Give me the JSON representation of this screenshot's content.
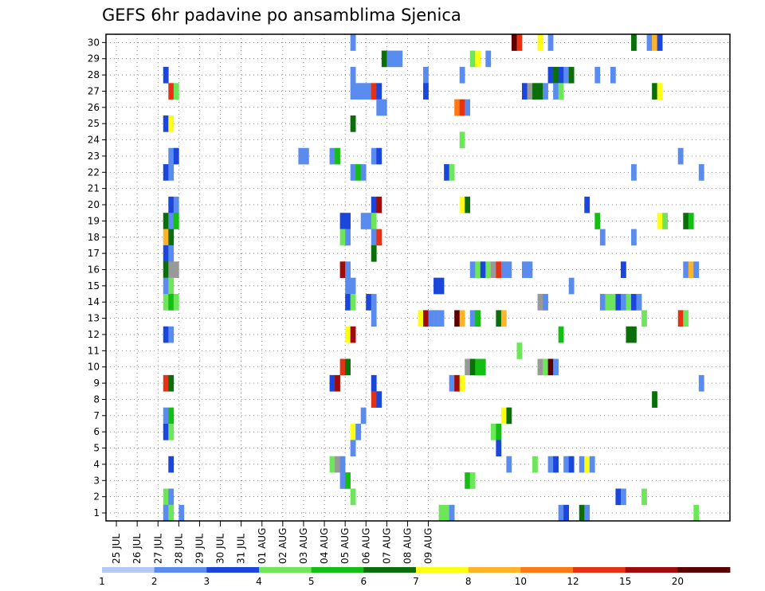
{
  "chart_data": {
    "type": "heatmap",
    "title": "GEFS 6hr padavine po ansamblima Sjenica",
    "y_tick_labels": [
      "1",
      "2",
      "3",
      "4",
      "5",
      "6",
      "7",
      "8",
      "9",
      "10",
      "11",
      "12",
      "13",
      "14",
      "15",
      "16",
      "17",
      "18",
      "19",
      "20",
      "21",
      "22",
      "23",
      "24",
      "25",
      "26",
      "27",
      "28",
      "29",
      "30"
    ],
    "x_tick_labels": [
      "25 JUL",
      "26 JUL",
      "27 JUL",
      "28 JUL",
      "29 JUL",
      "30 JUL",
      "31 JUL",
      "01 AUG",
      "02 AUG",
      "03 AUG",
      "04 AUG",
      "05 AUG",
      "06 AUG",
      "07 AUG",
      "08 AUG",
      "09 AUG"
    ],
    "grid": "dotted",
    "legend": {
      "placement": "bottom",
      "labels": [
        "1",
        "2",
        "3",
        "4",
        "5",
        "6",
        "7",
        "8",
        "10",
        "12",
        "15",
        "20"
      ],
      "colors": [
        "#b4c8f5",
        "#5a8cf0",
        "#1a46dc",
        "#6ee65a",
        "#14be14",
        "#0a6e0a",
        "#ffff14",
        "#ffb428",
        "#ff7814",
        "#e63214",
        "#a00a0a",
        "#5a0000"
      ]
    },
    "cells": [
      {
        "m": 30,
        "c": [
          [
            47,
            1
          ],
          [
            78,
            11
          ],
          [
            79,
            9
          ],
          [
            83,
            6
          ],
          [
            85,
            1
          ],
          [
            101,
            5
          ],
          [
            104,
            1
          ],
          [
            105,
            7
          ],
          [
            106,
            2
          ]
        ]
      },
      {
        "m": 29,
        "c": [
          [
            53,
            5
          ],
          [
            54,
            1
          ],
          [
            55,
            1
          ],
          [
            56,
            1
          ],
          [
            70,
            3
          ],
          [
            71,
            6
          ],
          [
            73,
            1
          ]
        ]
      },
      {
        "m": 28,
        "c": [
          [
            11,
            2
          ],
          [
            47,
            1
          ],
          [
            61,
            1
          ],
          [
            68,
            1
          ],
          [
            85,
            2
          ],
          [
            86,
            5
          ],
          [
            87,
            2
          ],
          [
            88,
            1
          ],
          [
            89,
            5
          ],
          [
            94,
            1
          ],
          [
            97,
            1
          ]
        ]
      },
      {
        "m": 27,
        "c": [
          [
            12,
            9
          ],
          [
            13,
            3
          ],
          [
            47,
            1
          ],
          [
            48,
            1
          ],
          [
            49,
            1
          ],
          [
            50,
            1
          ],
          [
            51,
            9
          ],
          [
            52,
            2
          ],
          [
            61,
            2
          ],
          [
            80,
            2
          ],
          [
            81,
            12
          ],
          [
            82,
            5
          ],
          [
            83,
            5
          ],
          [
            84,
            1
          ],
          [
            86,
            1
          ],
          [
            87,
            3
          ],
          [
            105,
            5
          ],
          [
            106,
            6
          ]
        ]
      },
      {
        "m": 26,
        "c": [
          [
            52,
            1
          ],
          [
            53,
            1
          ],
          [
            67,
            8
          ],
          [
            68,
            9
          ],
          [
            69,
            1
          ]
        ]
      },
      {
        "m": 25,
        "c": [
          [
            11,
            2
          ],
          [
            12,
            6
          ],
          [
            47,
            5
          ]
        ]
      },
      {
        "m": 24,
        "c": [
          [
            68,
            3
          ]
        ]
      },
      {
        "m": 23,
        "c": [
          [
            12,
            1
          ],
          [
            13,
            2
          ],
          [
            37,
            1
          ],
          [
            38,
            1
          ],
          [
            43,
            1
          ],
          [
            44,
            4
          ],
          [
            51,
            1
          ],
          [
            52,
            2
          ],
          [
            110,
            1
          ]
        ]
      },
      {
        "m": 22,
        "c": [
          [
            11,
            2
          ],
          [
            12,
            1
          ],
          [
            47,
            1
          ],
          [
            48,
            4
          ],
          [
            49,
            1
          ],
          [
            65,
            2
          ],
          [
            66,
            3
          ],
          [
            101,
            1
          ],
          [
            114,
            1
          ]
        ]
      },
      {
        "m": 20,
        "c": [
          [
            12,
            2
          ],
          [
            13,
            1
          ],
          [
            51,
            2
          ],
          [
            52,
            10
          ],
          [
            68,
            6
          ],
          [
            69,
            5
          ],
          [
            92,
            2
          ]
        ]
      },
      {
        "m": 19,
        "c": [
          [
            11,
            5
          ],
          [
            12,
            1
          ],
          [
            13,
            4
          ],
          [
            45,
            2
          ],
          [
            46,
            2
          ],
          [
            49,
            1
          ],
          [
            50,
            1
          ],
          [
            51,
            3
          ],
          [
            94,
            4
          ],
          [
            106,
            6
          ],
          [
            107,
            3
          ],
          [
            111,
            5
          ],
          [
            112,
            4
          ]
        ]
      },
      {
        "m": 18,
        "c": [
          [
            11,
            7
          ],
          [
            12,
            5
          ],
          [
            45,
            3
          ],
          [
            46,
            1
          ],
          [
            51,
            1
          ],
          [
            52,
            9
          ],
          [
            95,
            1
          ],
          [
            101,
            1
          ]
        ]
      },
      {
        "m": 17,
        "c": [
          [
            11,
            2
          ],
          [
            12,
            1
          ],
          [
            51,
            5
          ]
        ]
      },
      {
        "m": 16,
        "c": [
          [
            11,
            5
          ],
          [
            12,
            12
          ],
          [
            13,
            13
          ],
          [
            45,
            10
          ],
          [
            46,
            1
          ],
          [
            70,
            1
          ],
          [
            71,
            3
          ],
          [
            72,
            2
          ],
          [
            73,
            3
          ],
          [
            74,
            13
          ],
          [
            75,
            9
          ],
          [
            76,
            1
          ],
          [
            77,
            1
          ],
          [
            80,
            1
          ],
          [
            81,
            1
          ],
          [
            99,
            2
          ],
          [
            111,
            1
          ],
          [
            112,
            7
          ],
          [
            113,
            1
          ]
        ]
      },
      {
        "m": 15,
        "c": [
          [
            11,
            1
          ],
          [
            12,
            3
          ],
          [
            46,
            1
          ],
          [
            47,
            1
          ],
          [
            63,
            2
          ],
          [
            64,
            2
          ],
          [
            89,
            1
          ]
        ]
      },
      {
        "m": 14,
        "c": [
          [
            11,
            3
          ],
          [
            12,
            4
          ],
          [
            13,
            3
          ],
          [
            46,
            2
          ],
          [
            47,
            3
          ],
          [
            50,
            2
          ],
          [
            51,
            1
          ],
          [
            83,
            13
          ],
          [
            84,
            1
          ],
          [
            95,
            1
          ],
          [
            96,
            3
          ],
          [
            97,
            3
          ],
          [
            98,
            2
          ],
          [
            99,
            1
          ],
          [
            100,
            3
          ],
          [
            101,
            2
          ],
          [
            102,
            1
          ]
        ]
      },
      {
        "m": 13,
        "c": [
          [
            51,
            1
          ],
          [
            60,
            6
          ],
          [
            61,
            10
          ],
          [
            62,
            1
          ],
          [
            63,
            1
          ],
          [
            64,
            1
          ],
          [
            67,
            11
          ],
          [
            68,
            7
          ],
          [
            70,
            1
          ],
          [
            71,
            4
          ],
          [
            75,
            5
          ],
          [
            76,
            7
          ],
          [
            103,
            3
          ],
          [
            110,
            9
          ],
          [
            111,
            3
          ]
        ]
      },
      {
        "m": 12,
        "c": [
          [
            11,
            2
          ],
          [
            12,
            1
          ],
          [
            46,
            6
          ],
          [
            47,
            10
          ],
          [
            87,
            4
          ],
          [
            100,
            5
          ],
          [
            101,
            5
          ]
        ]
      },
      {
        "m": 11,
        "c": [
          [
            79,
            3
          ]
        ]
      },
      {
        "m": 10,
        "c": [
          [
            45,
            9
          ],
          [
            46,
            5
          ],
          [
            69,
            13
          ],
          [
            70,
            5
          ],
          [
            71,
            4
          ],
          [
            72,
            4
          ],
          [
            83,
            13
          ],
          [
            84,
            3
          ],
          [
            85,
            11
          ],
          [
            86,
            1
          ]
        ]
      },
      {
        "m": 9,
        "c": [
          [
            11,
            9
          ],
          [
            12,
            5
          ],
          [
            43,
            2
          ],
          [
            44,
            10
          ],
          [
            51,
            2
          ],
          [
            66,
            1
          ],
          [
            67,
            10
          ],
          [
            68,
            6
          ],
          [
            114,
            1
          ]
        ]
      },
      {
        "m": 8,
        "c": [
          [
            51,
            9
          ],
          [
            52,
            2
          ],
          [
            105,
            5
          ]
        ]
      },
      {
        "m": 7,
        "c": [
          [
            11,
            1
          ],
          [
            12,
            4
          ],
          [
            49,
            1
          ],
          [
            76,
            6
          ],
          [
            77,
            5
          ]
        ]
      },
      {
        "m": 6,
        "c": [
          [
            11,
            2
          ],
          [
            12,
            3
          ],
          [
            47,
            6
          ],
          [
            48,
            1
          ],
          [
            74,
            3
          ],
          [
            75,
            4
          ]
        ]
      },
      {
        "m": 5,
        "c": [
          [
            47,
            1
          ],
          [
            75,
            2
          ]
        ]
      },
      {
        "m": 4,
        "c": [
          [
            12,
            2
          ],
          [
            43,
            3
          ],
          [
            44,
            12
          ],
          [
            45,
            1
          ],
          [
            77,
            1
          ],
          [
            82,
            3
          ],
          [
            85,
            1
          ],
          [
            86,
            2
          ],
          [
            88,
            1
          ],
          [
            89,
            2
          ],
          [
            91,
            1
          ],
          [
            92,
            6
          ],
          [
            93,
            1
          ]
        ]
      },
      {
        "m": 3,
        "c": [
          [
            45,
            1
          ],
          [
            46,
            4
          ],
          [
            69,
            4
          ],
          [
            70,
            3
          ]
        ]
      },
      {
        "m": 2,
        "c": [
          [
            11,
            3
          ],
          [
            12,
            1
          ],
          [
            47,
            3
          ],
          [
            98,
            2
          ],
          [
            99,
            1
          ],
          [
            103,
            3
          ]
        ]
      },
      {
        "m": 1,
        "c": [
          [
            11,
            1
          ],
          [
            12,
            3
          ],
          [
            14,
            1
          ],
          [
            64,
            3
          ],
          [
            65,
            3
          ],
          [
            66,
            1
          ],
          [
            87,
            1
          ],
          [
            88,
            2
          ],
          [
            91,
            5
          ],
          [
            92,
            1
          ],
          [
            113,
            3
          ]
        ]
      }
    ]
  }
}
